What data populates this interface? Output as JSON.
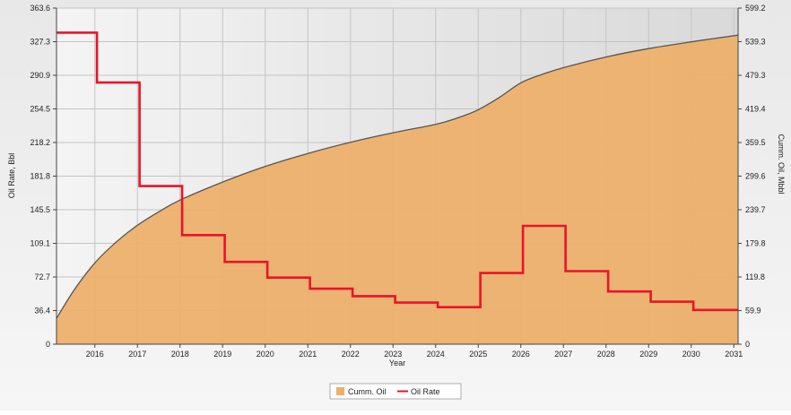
{
  "chart_data": {
    "type": "line",
    "xlabel": "Year",
    "ylabel_left": "Oil Rate, Bbl",
    "ylabel_right": "Cumm. Oil, Mbbl",
    "x_ticks": [
      "2016",
      "2017",
      "2018",
      "2019",
      "2020",
      "2021",
      "2022",
      "2023",
      "2024",
      "2025",
      "2026",
      "2027",
      "2028",
      "2029",
      "2030",
      "2031"
    ],
    "xlim": [
      2015.1,
      2031.1
    ],
    "y_left_ticks": [
      "0",
      "36.4",
      "72.7",
      "109.1",
      "145.5",
      "181.8",
      "218.2",
      "254.5",
      "290.9",
      "327.3",
      "363.6"
    ],
    "y_right_ticks": [
      "0",
      "59.9",
      "119.8",
      "179.8",
      "239.7",
      "299.6",
      "359.5",
      "419.4",
      "479.3",
      "539.3",
      "599.2"
    ],
    "y_left_lim": [
      0,
      363.6
    ],
    "y_right_lim": [
      0,
      599.2
    ],
    "grid": true,
    "legend_position": "bottom-center",
    "series": [
      {
        "name": "Cumm. Oil",
        "kind": "area",
        "axis": "right",
        "color": "#ECB06C",
        "line_color": "#555555",
        "x": [
          2015.1,
          2015.5,
          2016,
          2016.5,
          2017,
          2017.5,
          2018,
          2019,
          2020,
          2021,
          2022,
          2023,
          2024,
          2024.5,
          2025,
          2025.5,
          2026,
          2026.5,
          2027,
          2028,
          2029,
          2030,
          2031.1
        ],
        "values": [
          46,
          95,
          145,
          182,
          212,
          236,
          257,
          289,
          317,
          340,
          360,
          377,
          392,
          403,
          418,
          440,
          466,
          481,
          493,
          512,
          527,
          539,
          551
        ]
      },
      {
        "name": "Oil Rate",
        "kind": "step",
        "axis": "left",
        "color": "#E8142A",
        "x": [
          2015.1,
          2016.05,
          2017.05,
          2018.05,
          2019.05,
          2020.05,
          2021.05,
          2022.05,
          2023.05,
          2024.05,
          2025.05,
          2026.05,
          2027.05,
          2028.05,
          2029.05,
          2030.05,
          2031.1
        ],
        "values": [
          337,
          283,
          171,
          118,
          89,
          72,
          60,
          52,
          45,
          40,
          77,
          128,
          79,
          57,
          46,
          37,
          37
        ]
      }
    ]
  }
}
